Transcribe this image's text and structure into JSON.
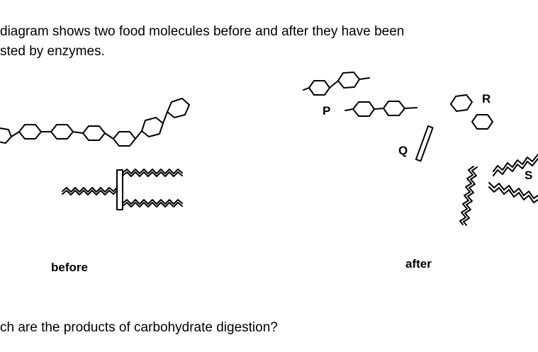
{
  "intro": {
    "line1": "diagram shows two food molecules before and after they have been",
    "line2": "sted by enzymes."
  },
  "captions": {
    "before": "before",
    "after": "after"
  },
  "labels": {
    "p": "P",
    "q": "Q",
    "r": "R",
    "s": "S"
  },
  "question": "ch are the products of carbohydrate digestion?"
}
